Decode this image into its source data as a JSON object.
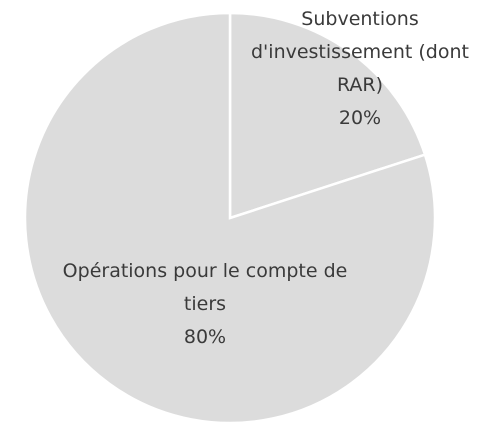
{
  "chart_data": {
    "type": "pie",
    "categories": [
      "Subventions d'investissement (dont RAR)",
      "Opérations pour le compte de tiers"
    ],
    "values": [
      20,
      80
    ],
    "value_labels": [
      "20%",
      "80%"
    ],
    "colors": [
      "#dcdcdc",
      "#dcdcdc"
    ]
  }
}
